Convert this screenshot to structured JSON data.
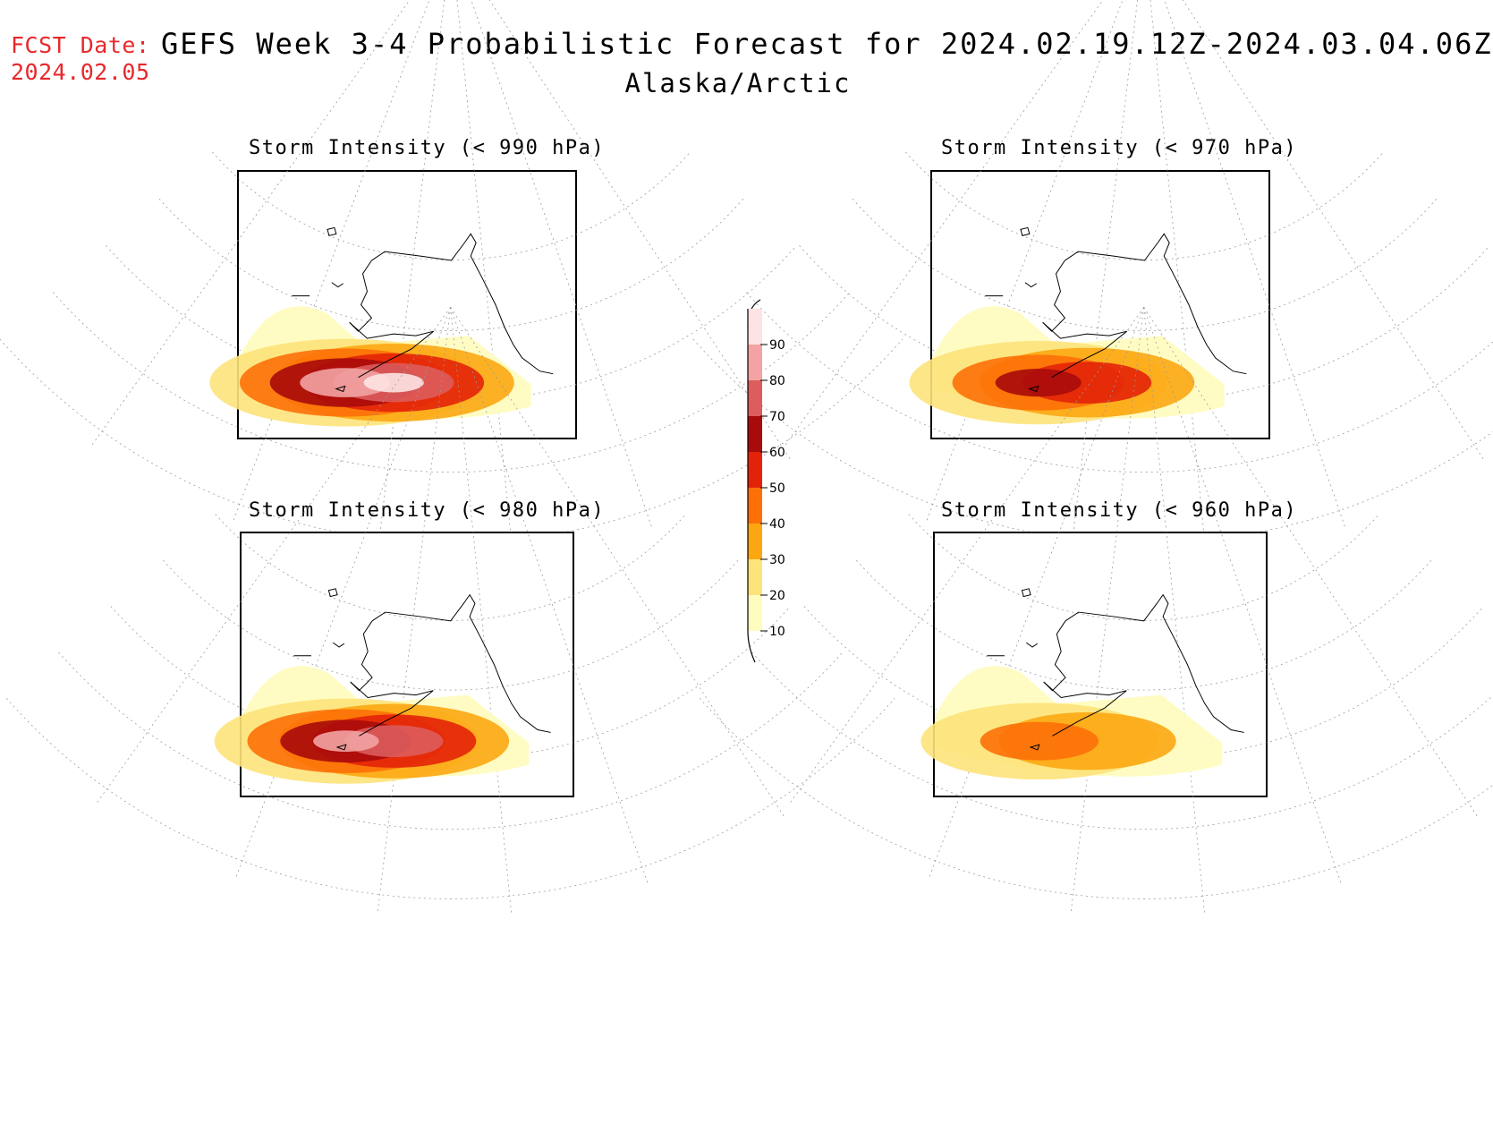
{
  "header": {
    "fcst_label": "FCST Date:",
    "fcst_date": "2024.02.05",
    "title": "GEFS Week 3-4 Probabilistic Forecast for 2024.02.19.12Z-2024.03.04.06Z",
    "subtitle": "Alaska/Arctic"
  },
  "panels": [
    {
      "id": "p990",
      "title": "Storm Intensity (< 990 hPa)",
      "max_category": 90
    },
    {
      "id": "p970",
      "title": "Storm Intensity (< 970 hPa)",
      "max_category": 60
    },
    {
      "id": "p980",
      "title": "Storm Intensity (< 980 hPa)",
      "max_category": 80
    },
    {
      "id": "p960",
      "title": "Storm Intensity (< 960 hPa)",
      "max_category": 40
    }
  ],
  "colorbar": {
    "levels": [
      {
        "label": "10",
        "color": "#fffcc0"
      },
      {
        "label": "20",
        "color": "#fde37a"
      },
      {
        "label": "30",
        "color": "#fca712"
      },
      {
        "label": "40",
        "color": "#fd7008"
      },
      {
        "label": "50",
        "color": "#e32309"
      },
      {
        "label": "60",
        "color": "#a80b0b"
      },
      {
        "label": "70",
        "color": "#dd5c5c"
      },
      {
        "label": "80",
        "color": "#f3a3a3"
      },
      {
        "label": "90",
        "color": "#fde3e3"
      }
    ],
    "unit": ""
  }
}
